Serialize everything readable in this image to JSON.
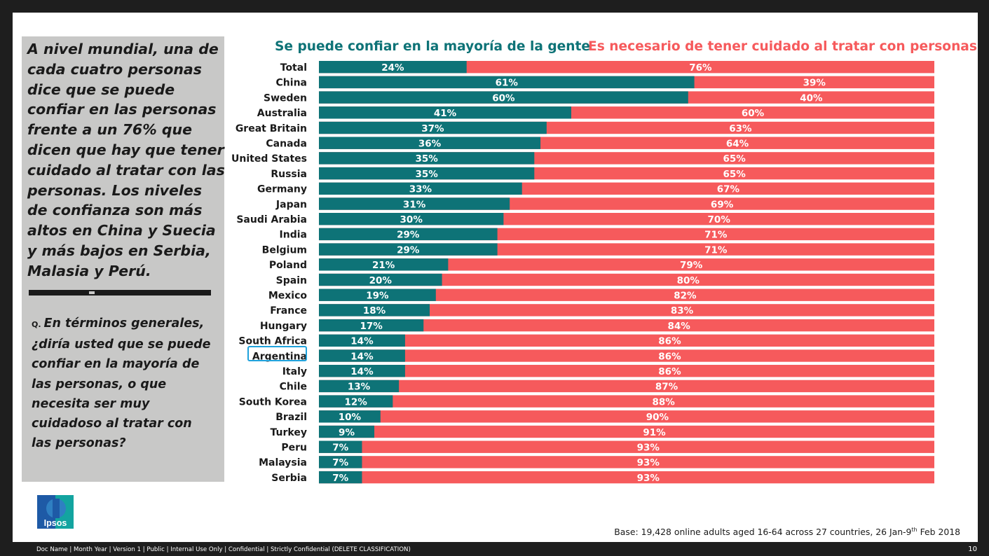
{
  "sidebar": {
    "headline": "A nivel mundial, una de cada cuatro personas dice que se puede confiar en las personas frente a un 76% que dicen que hay que tener cuidado al tratar con las personas. Los niveles de confianza son más altos en China y Suecia y más bajos en Serbia, Malasia y Perú.",
    "question_prefix": "Q.",
    "question": "En términos generales, ¿diría usted que se puede confiar en la mayoría de las personas, o que necesita ser muy cuidadoso al tratar con las personas?"
  },
  "colors": {
    "trust": "#0e7377",
    "careful": "#f65a5c",
    "highlight": "#1fa2dc"
  },
  "chart_data": {
    "type": "bar",
    "orientation": "horizontal",
    "stacked": true,
    "title": "",
    "categories": [
      "Total",
      "China",
      "Sweden",
      "Australia",
      "Great Britain",
      "Canada",
      "United States",
      "Russia",
      "Germany",
      "Japan",
      "Saudi Arabia",
      "India",
      "Belgium",
      "Poland",
      "Spain",
      "Mexico",
      "France",
      "Hungary",
      "South Africa",
      "Argentina",
      "Italy",
      "Chile",
      "South Korea",
      "Brazil",
      "Turkey",
      "Peru",
      "Malaysia",
      "Serbia"
    ],
    "series": [
      {
        "name": "Se puede confiar en la mayoría de la gente",
        "values": [
          24,
          61,
          60,
          41,
          37,
          36,
          35,
          35,
          33,
          31,
          30,
          29,
          29,
          21,
          20,
          19,
          18,
          17,
          14,
          14,
          14,
          13,
          12,
          10,
          9,
          7,
          7,
          7
        ]
      },
      {
        "name": "Es necesario de tener cuidado al tratar con personas",
        "values": [
          76,
          39,
          40,
          60,
          63,
          64,
          65,
          65,
          67,
          69,
          70,
          71,
          71,
          79,
          80,
          82,
          83,
          84,
          86,
          86,
          86,
          87,
          88,
          90,
          91,
          93,
          93,
          93
        ]
      }
    ],
    "value_suffix": "%",
    "highlighted_category": "Argentina",
    "legend_position": "top",
    "xlim": [
      0,
      100
    ]
  },
  "logo": {
    "text": "Ipsos"
  },
  "footer": {
    "base_note_pre": "Base: 19,428  online adults aged 16-64  across 27 countries,   26 Jan-9",
    "base_note_sup": "th",
    "base_note_post": " Feb 2018",
    "doc_line": "Doc Name | Month  Year | Version 1 | Public  | Internal Use Only | Confidential  | Strictly Confidential  (DELETE CLASSIFICATION)",
    "page_number": "10"
  }
}
